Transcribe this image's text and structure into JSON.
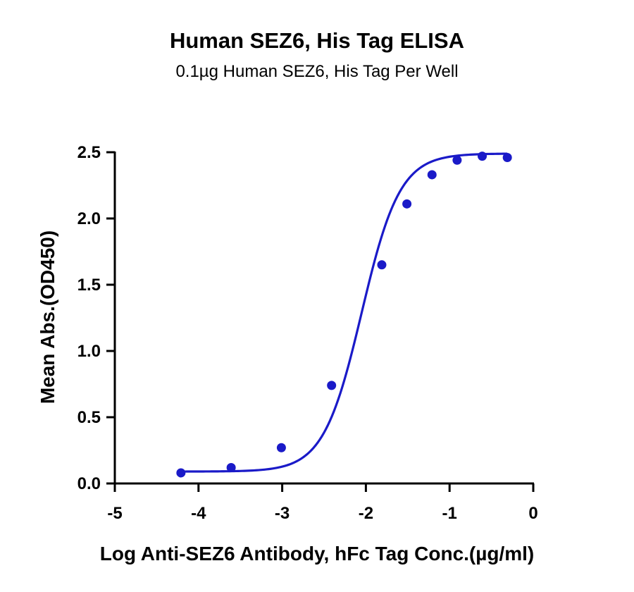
{
  "chart_data": {
    "type": "scatter",
    "title": "Human SEZ6, His Tag ELISA",
    "subtitle": "0.1µg Human SEZ6, His Tag Per Well",
    "xlabel": "Log Anti-SEZ6 Antibody, hFc Tag Conc.(µg/ml)",
    "ylabel": "Mean Abs.(OD450)",
    "xlim": [
      -5,
      0
    ],
    "ylim": [
      0,
      2.5
    ],
    "xticks": [
      "-5",
      "-4",
      "-3",
      "-2",
      "-1",
      "0"
    ],
    "yticks": [
      "0.0",
      "0.5",
      "1.0",
      "1.5",
      "2.0",
      "2.5"
    ],
    "grid": false,
    "color": "#1a1ac8",
    "series": [
      {
        "x": [
          -4.21,
          -3.61,
          -3.01,
          -2.41,
          -1.81,
          -1.51,
          -1.21,
          -0.91,
          -0.61,
          -0.31
        ],
        "y": [
          0.08,
          0.12,
          0.27,
          0.74,
          1.65,
          2.11,
          2.33,
          2.44,
          2.47,
          2.46
        ]
      }
    ],
    "fit": {
      "model": "4PL",
      "bottom": 0.09,
      "top": 2.49,
      "log_ec50": -2.05,
      "hill": 1.9
    }
  }
}
